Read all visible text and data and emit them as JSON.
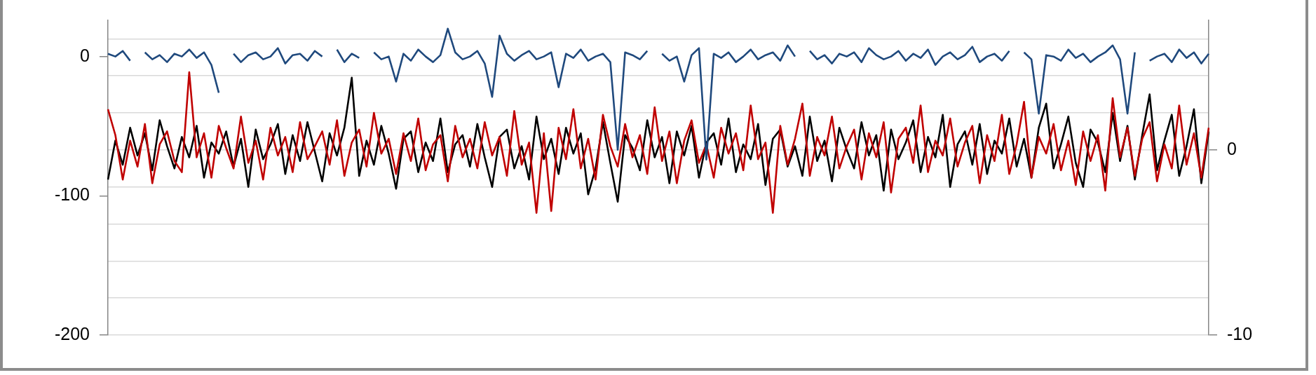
{
  "chart_data": {
    "type": "line",
    "categories": [
      null,
      null,
      null,
      null,
      null,
      null,
      null,
      null,
      null,
      null,
      null,
      null,
      null,
      null,
      null,
      null,
      null,
      null,
      null,
      null,
      null,
      null,
      null,
      null,
      null,
      null,
      null,
      null,
      null,
      null,
      null,
      null,
      null,
      null,
      null,
      null,
      null,
      null,
      null,
      null,
      null,
      null,
      null,
      null,
      null,
      null,
      null,
      null,
      null,
      null,
      null,
      null,
      null,
      null,
      null,
      null,
      null,
      null,
      null,
      null,
      null,
      null,
      null,
      null,
      null,
      null,
      null,
      null,
      null,
      null,
      null,
      null,
      null,
      null,
      null,
      null,
      null,
      null,
      null,
      null,
      null,
      null,
      null,
      null,
      null,
      null,
      null,
      null,
      null,
      null,
      null,
      null,
      null,
      null,
      null,
      null,
      null,
      null,
      null,
      null,
      null,
      null,
      null,
      null,
      null,
      null,
      null,
      null,
      null,
      null,
      null,
      null,
      null,
      null,
      null,
      null,
      null,
      null,
      null,
      null,
      null,
      null,
      null,
      null,
      null,
      null,
      null,
      null,
      null,
      null,
      null,
      null,
      null,
      null,
      null,
      null,
      null,
      null,
      null,
      null,
      null,
      null,
      null,
      null,
      null,
      null,
      null,
      null,
      null,
      null
    ],
    "series": [
      {
        "color": "#000000",
        "axis": "y2",
        "values": [
          -1.6,
          0.5,
          -0.8,
          1.2,
          -0.3,
          0.9,
          -1.1,
          1.6,
          0.2,
          -1.0,
          0.7,
          -0.4,
          1.3,
          -1.5,
          0.4,
          -0.2,
          1.0,
          -0.9,
          0.6,
          -2.0,
          1.1,
          -0.5,
          0.3,
          1.4,
          -1.3,
          0.8,
          -0.6,
          1.5,
          -0.1,
          -1.7,
          0.9,
          -0.3,
          1.2,
          3.9,
          -1.4,
          0.5,
          -0.8,
          1.3,
          -0.2,
          -2.1,
          0.6,
          1.0,
          -1.2,
          0.4,
          -0.6,
          1.7,
          -1.2,
          0.3,
          0.8,
          -0.9,
          1.4,
          -0.4,
          -2.0,
          0.7,
          1.1,
          -1.0,
          0.2,
          -1.6,
          1.8,
          -0.5,
          0.6,
          -1.3,
          1.2,
          -0.2,
          0.9,
          -2.4,
          -1.0,
          1.5,
          -0.7,
          -2.8,
          0.8,
          0.1,
          -1.1,
          1.6,
          -0.4,
          0.7,
          -1.8,
          1.0,
          -0.3,
          1.3,
          -1.5,
          0.4,
          0.9,
          -0.8,
          1.7,
          -1.2,
          0.3,
          -0.5,
          1.4,
          -1.9,
          0.6,
          1.1,
          -0.9,
          0.2,
          -1.4,
          1.8,
          -0.6,
          0.5,
          -1.7,
          1.2,
          0.0,
          -1.0,
          1.5,
          -0.3,
          0.8,
          -2.2,
          1.1,
          -0.5,
          0.4,
          1.6,
          -1.2,
          0.7,
          -0.4,
          1.9,
          -2.0,
          0.3,
          1.0,
          -0.8,
          1.4,
          -1.3,
          0.5,
          -0.2,
          1.7,
          -0.9,
          0.6,
          -1.5,
          1.2,
          2.5,
          -1.0,
          0.3,
          1.8,
          -0.7,
          -2.0,
          1.1,
          0.4,
          -1.2,
          2.0,
          -0.6,
          1.3,
          -1.6,
          0.8,
          3.0,
          -1.1,
          0.5,
          1.9,
          -1.4,
          0.2,
          2.2,
          -1.8,
          1.0
        ]
      },
      {
        "color": "#c00000",
        "axis": "y2",
        "values": [
          2.2,
          0.8,
          -1.6,
          0.5,
          -0.9,
          1.4,
          -1.8,
          0.3,
          1.0,
          -0.6,
          -1.2,
          4.2,
          -0.4,
          0.9,
          -1.5,
          1.3,
          0.1,
          -1.0,
          1.8,
          -0.7,
          0.5,
          -1.6,
          1.2,
          -0.3,
          0.7,
          -1.2,
          1.5,
          -0.5,
          0.2,
          1.0,
          -0.8,
          1.6,
          -1.4,
          0.4,
          1.1,
          -0.9,
          2.0,
          -0.2,
          0.6,
          -1.3,
          0.9,
          -0.6,
          1.7,
          -1.1,
          0.3,
          0.8,
          -1.7,
          1.3,
          -0.4,
          0.6,
          -1.0,
          1.5,
          -0.3,
          0.7,
          -1.4,
          2.1,
          -0.8,
          0.4,
          -3.4,
          0.9,
          -3.3,
          1.2,
          -0.5,
          2.2,
          -1.0,
          0.6,
          -1.6,
          1.9,
          0.2,
          -0.9,
          1.4,
          -0.4,
          0.8,
          -1.3,
          2.3,
          -0.6,
          1.0,
          -1.8,
          0.5,
          1.6,
          -0.7,
          0.3,
          -1.5,
          1.2,
          -0.2,
          0.9,
          -1.1,
          2.4,
          -0.5,
          0.4,
          -3.4,
          1.3,
          -0.8,
          0.6,
          2.5,
          -1.4,
          0.7,
          -0.3,
          1.8,
          -1.0,
          0.2,
          1.1,
          -1.6,
          0.9,
          -0.4,
          1.5,
          -2.3,
          0.6,
          1.2,
          -0.7,
          2.4,
          -1.2,
          0.5,
          -0.3,
          1.7,
          -0.9,
          0.4,
          1.3,
          -1.8,
          0.8,
          -0.6,
          1.9,
          -1.3,
          0.3,
          2.6,
          -1.5,
          0.7,
          -0.2,
          1.4,
          -1.1,
          0.5,
          -1.9,
          1.0,
          -0.6,
          0.8,
          -2.2,
          2.8,
          -0.4,
          1.2,
          -1.4,
          0.6,
          1.5,
          -1.7,
          0.3,
          -1.0,
          2.4,
          -0.8,
          0.9,
          -1.5,
          1.2
        ]
      },
      {
        "color": "#1f497d",
        "axis": "y",
        "values": [
          2,
          0,
          4,
          -3,
          null,
          3,
          -2,
          1,
          -4,
          2,
          0,
          5,
          -1,
          3,
          -6,
          -26,
          null,
          2,
          -4,
          1,
          3,
          -2,
          0,
          6,
          -5,
          1,
          2,
          -3,
          4,
          0,
          null,
          5,
          -4,
          2,
          -1,
          null,
          3,
          -2,
          0,
          -18,
          2,
          -3,
          5,
          0,
          -4,
          1,
          20,
          3,
          -2,
          0,
          4,
          -5,
          -29,
          15,
          2,
          -3,
          1,
          4,
          -2,
          0,
          3,
          -22,
          2,
          -1,
          5,
          -3,
          0,
          2,
          -4,
          -67,
          3,
          1,
          -2,
          4,
          null,
          2,
          -3,
          0,
          -18,
          1,
          6,
          -74,
          2,
          -1,
          3,
          -4,
          0,
          5,
          -2,
          1,
          3,
          -3,
          8,
          0,
          null,
          4,
          -2,
          1,
          -5,
          2,
          0,
          3,
          -4,
          6,
          1,
          -2,
          0,
          4,
          -3,
          2,
          -1,
          5,
          -6,
          0,
          3,
          -2,
          1,
          7,
          -4,
          0,
          2,
          -3,
          4,
          null,
          3,
          -2,
          -41,
          1,
          0,
          -3,
          5,
          -1,
          2,
          -4,
          0,
          3,
          8,
          -2,
          -41,
          3,
          null,
          -3,
          0,
          2,
          -4,
          5,
          -1,
          3,
          -5,
          2
        ]
      }
    ],
    "ylim": [
      -200,
      26
    ],
    "yticks": [
      -200,
      -100,
      0
    ],
    "y2lim": [
      -10,
      7
    ],
    "y2ticks": [
      -10,
      {
        "value": -8,
        "label": null
      },
      {
        "value": -6,
        "label": null
      },
      {
        "value": -4,
        "label": null
      },
      {
        "value": -2,
        "label": null
      },
      0,
      {
        "value": 2,
        "label": null
      },
      {
        "value": 4,
        "label": null
      },
      {
        "value": 6,
        "label": null
      }
    ],
    "grid": true,
    "tick_labels": "y"
  }
}
